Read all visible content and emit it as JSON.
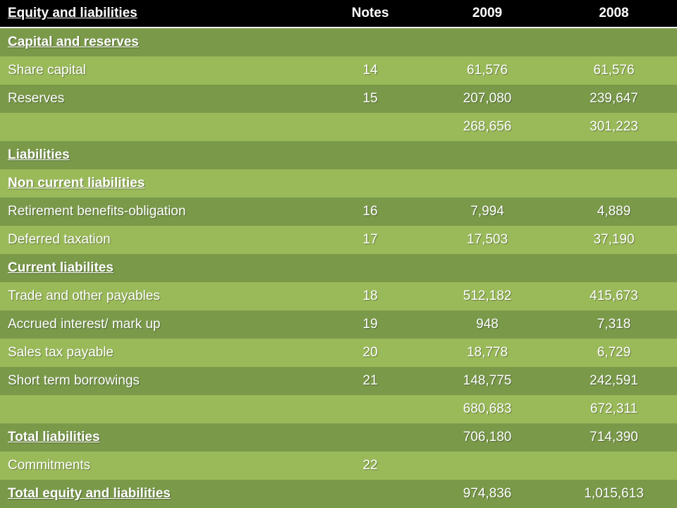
{
  "header": {
    "title": "Equity and liabilities",
    "notes": "Notes",
    "year1": "2009",
    "year2": "2008"
  },
  "rows": [
    {
      "label": "Capital and reserves",
      "notes": "",
      "v2009": "",
      "v2008": "",
      "heading": true
    },
    {
      "label": "Share capital",
      "notes": "14",
      "v2009": "61,576",
      "v2008": "61,576",
      "heading": false
    },
    {
      "label": "Reserves",
      "notes": "15",
      "v2009": "207,080",
      "v2008": "239,647",
      "heading": false
    },
    {
      "label": "",
      "notes": "",
      "v2009": "268,656",
      "v2008": "301,223",
      "heading": false
    },
    {
      "label": "Liabilities",
      "notes": "",
      "v2009": "",
      "v2008": "",
      "heading": true
    },
    {
      "label": "Non current liabilities",
      "notes": "",
      "v2009": "",
      "v2008": "",
      "heading": true
    },
    {
      "label": "Retirement benefits-obligation",
      "notes": "16",
      "v2009": "7,994",
      "v2008": "4,889",
      "heading": false
    },
    {
      "label": "Deferred taxation",
      "notes": "17",
      "v2009": "17,503",
      "v2008": "37,190",
      "heading": false
    },
    {
      "label": "Current liabilites",
      "notes": "",
      "v2009": "",
      "v2008": "",
      "heading": true
    },
    {
      "label": "Trade and other payables",
      "notes": "18",
      "v2009": "512,182",
      "v2008": "415,673",
      "heading": false
    },
    {
      "label": "Accrued interest/ mark up",
      "notes": "19",
      "v2009": "948",
      "v2008": "7,318",
      "heading": false
    },
    {
      "label": "Sales tax payable",
      "notes": "20",
      "v2009": "18,778",
      "v2008": "6,729",
      "heading": false
    },
    {
      "label": "Short term borrowings",
      "notes": "21",
      "v2009": "148,775",
      "v2008": "242,591",
      "heading": false
    },
    {
      "label": "",
      "notes": "",
      "v2009": "680,683",
      "v2008": "672,311",
      "heading": false
    },
    {
      "label": "Total liabilities",
      "notes": "",
      "v2009": "706,180",
      "v2008": "714,390",
      "heading": true
    },
    {
      "label": "Commitments",
      "notes": "22",
      "v2009": "",
      "v2008": "",
      "heading": false
    },
    {
      "label": "Total equity and liabilities",
      "notes": "",
      "v2009": "974,836",
      "v2008": "1,015,613",
      "heading": true
    }
  ],
  "colors": {
    "header_bg": "#000000",
    "row_dark": "#7a9a4a",
    "row_light": "#9aba5a",
    "text": "#ffffff"
  }
}
